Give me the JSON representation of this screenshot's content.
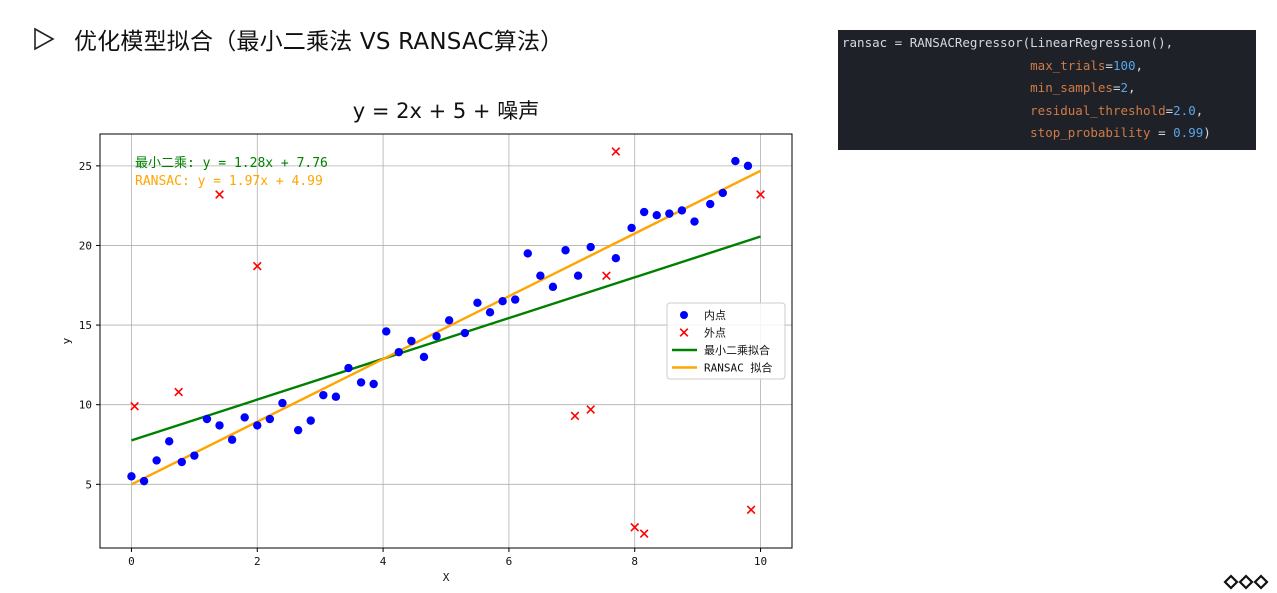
{
  "slide": {
    "heading": "优化模型拟合（最小二乘法 VS RANSAC算法）"
  },
  "code": {
    "lines": [
      [
        {
          "t": "ransac = RANSACRegressor(LinearRegression(),",
          "c": "def"
        }
      ],
      [
        {
          "t": "                         ",
          "c": "def"
        },
        {
          "t": "max_trials",
          "c": "kw"
        },
        {
          "t": "=",
          "c": "def"
        },
        {
          "t": "100",
          "c": "num"
        },
        {
          "t": ",",
          "c": "def"
        }
      ],
      [
        {
          "t": "                         ",
          "c": "def"
        },
        {
          "t": "min_samples",
          "c": "kw"
        },
        {
          "t": "=",
          "c": "def"
        },
        {
          "t": "2",
          "c": "num"
        },
        {
          "t": ",",
          "c": "def"
        }
      ],
      [
        {
          "t": "                         ",
          "c": "def"
        },
        {
          "t": "residual_threshold",
          "c": "kw"
        },
        {
          "t": "=",
          "c": "def"
        },
        {
          "t": "2.0",
          "c": "num"
        },
        {
          "t": ",",
          "c": "def"
        }
      ],
      [
        {
          "t": "                         ",
          "c": "def"
        },
        {
          "t": "stop_probability",
          "c": "kw"
        },
        {
          "t": " = ",
          "c": "def"
        },
        {
          "t": "0.99",
          "c": "num"
        },
        {
          "t": ")",
          "c": "def"
        }
      ]
    ]
  },
  "chart_data": {
    "type": "scatter",
    "title": "y = 2x + 5 + 噪声",
    "xlabel": "X",
    "ylabel": "y",
    "xlim": [
      -0.5,
      10.5
    ],
    "ylim": [
      1,
      27
    ],
    "xticks": [
      0,
      2,
      4,
      6,
      8,
      10
    ],
    "yticks": [
      5,
      10,
      15,
      20,
      25
    ],
    "grid": true,
    "legend_position": "center-right",
    "annotations": [
      {
        "text": "最小二乘: y = 1.28x + 7.76",
        "color": "#008000"
      },
      {
        "text": "RANSAC: y = 1.97x + 4.99",
        "color": "#ffa500"
      }
    ],
    "series": [
      {
        "name": "内点",
        "kind": "scatter",
        "marker": "circle",
        "color": "#0000ff",
        "points": [
          [
            0,
            5.5
          ],
          [
            0.2,
            5.2
          ],
          [
            0.4,
            6.5
          ],
          [
            0.6,
            7.7
          ],
          [
            0.8,
            6.4
          ],
          [
            1.0,
            6.8
          ],
          [
            1.2,
            9.1
          ],
          [
            1.4,
            8.7
          ],
          [
            1.6,
            7.8
          ],
          [
            1.8,
            9.2
          ],
          [
            2.0,
            8.7
          ],
          [
            2.2,
            9.1
          ],
          [
            2.4,
            10.1
          ],
          [
            2.65,
            8.4
          ],
          [
            2.85,
            9.0
          ],
          [
            3.05,
            10.6
          ],
          [
            3.25,
            10.5
          ],
          [
            3.45,
            12.3
          ],
          [
            3.65,
            11.4
          ],
          [
            3.85,
            11.3
          ],
          [
            4.05,
            14.6
          ],
          [
            4.25,
            13.3
          ],
          [
            4.45,
            14.0
          ],
          [
            4.65,
            13.0
          ],
          [
            4.85,
            14.3
          ],
          [
            5.05,
            15.3
          ],
          [
            5.3,
            14.5
          ],
          [
            5.5,
            16.4
          ],
          [
            5.7,
            15.8
          ],
          [
            5.9,
            16.5
          ],
          [
            6.1,
            16.6
          ],
          [
            6.3,
            19.5
          ],
          [
            6.5,
            18.1
          ],
          [
            6.7,
            17.4
          ],
          [
            6.9,
            19.7
          ],
          [
            7.1,
            18.1
          ],
          [
            7.3,
            19.9
          ],
          [
            7.7,
            19.2
          ],
          [
            7.95,
            21.1
          ],
          [
            8.15,
            22.1
          ],
          [
            8.35,
            21.9
          ],
          [
            8.55,
            22.0
          ],
          [
            8.75,
            22.2
          ],
          [
            8.95,
            21.5
          ],
          [
            9.2,
            22.6
          ],
          [
            9.4,
            23.3
          ],
          [
            9.6,
            25.3
          ],
          [
            9.8,
            25.0
          ]
        ]
      },
      {
        "name": "外点",
        "kind": "scatter",
        "marker": "x",
        "color": "#ff0000",
        "points": [
          [
            0.05,
            9.9
          ],
          [
            0.75,
            10.8
          ],
          [
            1.4,
            23.2
          ],
          [
            2.0,
            18.7
          ],
          [
            7.05,
            9.3
          ],
          [
            7.3,
            9.7
          ],
          [
            7.55,
            18.1
          ],
          [
            7.7,
            25.9
          ],
          [
            8.0,
            2.3
          ],
          [
            8.15,
            1.9
          ],
          [
            9.85,
            3.4
          ],
          [
            10.0,
            23.2
          ]
        ]
      },
      {
        "name": "最小二乘拟合",
        "kind": "line",
        "color": "#008000",
        "slope": 1.28,
        "intercept": 7.76,
        "x_range": [
          0,
          10
        ]
      },
      {
        "name": "RANSAC 拟合",
        "kind": "line",
        "color": "#ffa500",
        "slope": 1.97,
        "intercept": 4.99,
        "x_range": [
          0,
          10
        ]
      }
    ]
  }
}
